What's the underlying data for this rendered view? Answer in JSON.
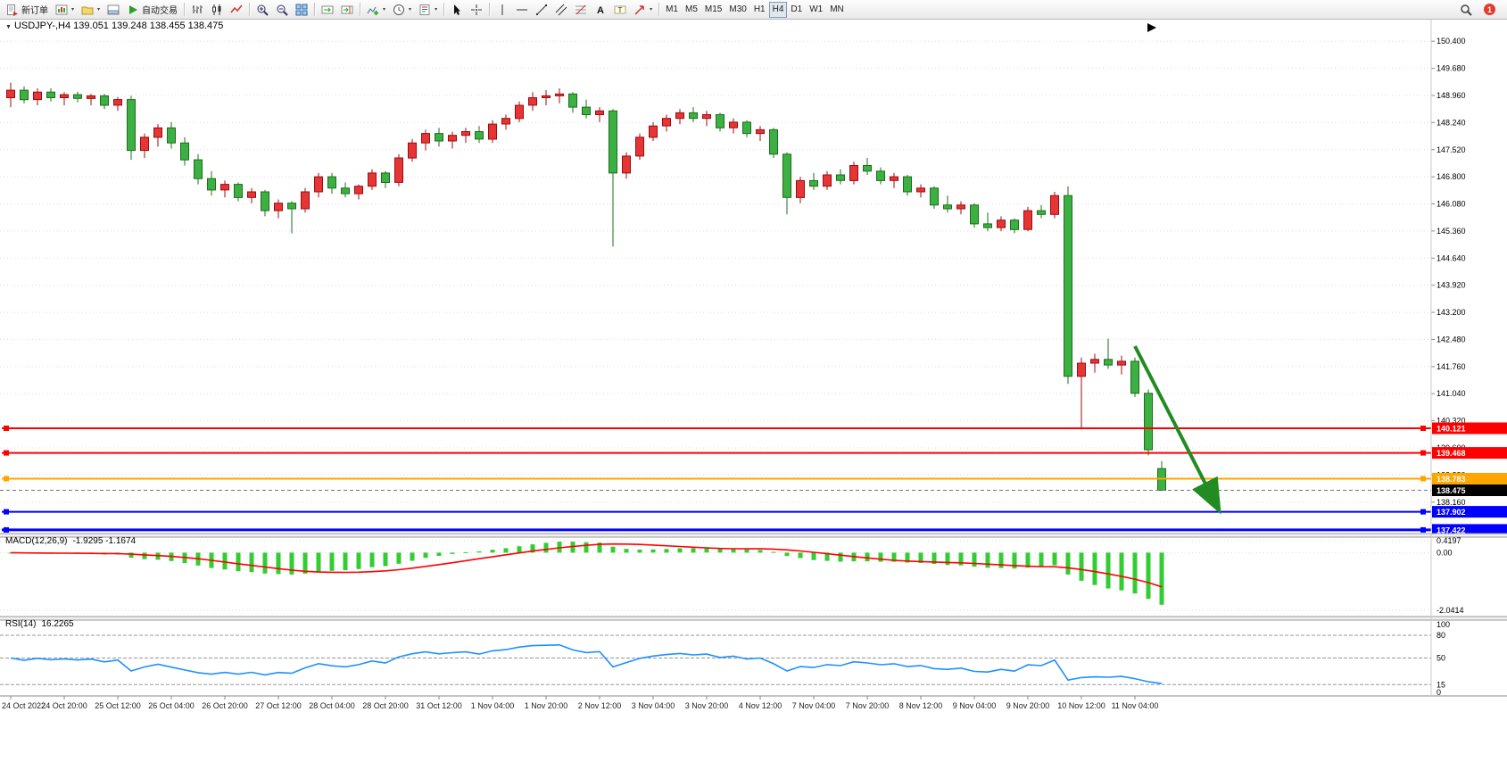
{
  "toolbar": {
    "groups": [
      {
        "items": [
          {
            "name": "new-order-button",
            "icon": "new-order-icon",
            "label": "新订单"
          },
          {
            "name": "new-chart-button",
            "icon": "new-chart-icon",
            "caret": true
          },
          {
            "name": "profiles-button",
            "icon": "profiles-icon",
            "caret": true
          },
          {
            "name": "terminal-button",
            "icon": "terminal-icon"
          },
          {
            "name": "auto-trading-button",
            "icon": "play-icon",
            "label": "自动交易"
          }
        ]
      },
      {
        "items": [
          {
            "name": "bar-chart-button",
            "icon": "ohlc-bars-icon"
          },
          {
            "name": "candlestick-chart-button",
            "icon": "candlestick-icon"
          },
          {
            "name": "line-chart-button",
            "icon": "line-chart-icon"
          }
        ]
      },
      {
        "items": [
          {
            "name": "zoom-in-button",
            "icon": "zoom-in-icon"
          },
          {
            "name": "zoom-out-button",
            "icon": "zoom-out-icon"
          },
          {
            "name": "tile-windows-button",
            "icon": "tile-windows-icon"
          }
        ]
      },
      {
        "items": [
          {
            "name": "auto-scroll-button",
            "icon": "auto-scroll-icon"
          },
          {
            "name": "chart-shift-button",
            "icon": "chart-shift-icon"
          }
        ]
      },
      {
        "items": [
          {
            "name": "indicators-button",
            "icon": "indicators-plus-icon",
            "caret": true
          },
          {
            "name": "periods-button",
            "icon": "clock-icon",
            "caret": true
          },
          {
            "name": "templates-button",
            "icon": "template-icon",
            "caret": true
          }
        ]
      },
      {
        "items": [
          {
            "name": "cursor-button",
            "icon": "cursor-icon"
          },
          {
            "name": "crosshair-button",
            "icon": "crosshair-icon"
          }
        ]
      },
      {
        "items": [
          {
            "name": "vertical-line-button",
            "icon": "vertical-line-icon"
          },
          {
            "name": "horizontal-line-button",
            "icon": "horizontal-line-icon"
          },
          {
            "name": "trendline-button",
            "icon": "trendline-icon"
          },
          {
            "name": "channel-button",
            "icon": "channel-icon"
          },
          {
            "name": "fibonacci-button",
            "icon": "fibonacci-icon"
          },
          {
            "name": "text-button",
            "icon": "text-icon"
          },
          {
            "name": "text-label-button",
            "icon": "text-label-icon"
          },
          {
            "name": "arrows-button",
            "icon": "arrow-tools-icon",
            "caret": true
          }
        ]
      },
      {
        "items": [
          {
            "name": "timeframe-m1-button",
            "label": "M1"
          },
          {
            "name": "timeframe-m5-button",
            "label": "M5"
          },
          {
            "name": "timeframe-m15-button",
            "label": "M15"
          },
          {
            "name": "timeframe-m30-button",
            "label": "M30"
          },
          {
            "name": "timeframe-h1-button",
            "label": "H1"
          },
          {
            "name": "timeframe-h4-button",
            "label": "H4",
            "active": true
          },
          {
            "name": "timeframe-d1-button",
            "label": "D1"
          },
          {
            "name": "timeframe-w1-button",
            "label": "W1"
          },
          {
            "name": "timeframe-mn-button",
            "label": "MN"
          }
        ]
      }
    ],
    "right_items": [
      {
        "name": "search-button",
        "icon": "search-icon"
      },
      {
        "name": "alerts-button",
        "icon": "alert-icon",
        "badge": "1"
      }
    ]
  },
  "chart": {
    "symbol": "USDJPY-",
    "timeframe": "H4",
    "title": "USDJPY-,H4 139.051 139.248 138.455 138.475",
    "ohlc": {
      "open": "139.051",
      "high": "139.248",
      "low": "138.455",
      "close": "138.475"
    }
  },
  "chart_data": {
    "type": "candlestick",
    "title": "USDJPY- H4",
    "price_axis": {
      "max": 150.95,
      "min": 137.325,
      "gridlines": [
        "150.400",
        "149.680",
        "148.960",
        "148.240",
        "147.520",
        "146.800",
        "146.080",
        "145.360",
        "144.640",
        "143.920",
        "143.200",
        "142.480",
        "141.760",
        "141.040",
        "140.320",
        "139.600",
        "138.880",
        "138.160",
        "137.440"
      ]
    },
    "candles": [
      [
        148.9,
        149.3,
        148.65,
        149.1
      ],
      [
        149.1,
        149.2,
        148.75,
        148.85
      ],
      [
        148.85,
        149.15,
        148.7,
        149.05
      ],
      [
        149.05,
        149.15,
        148.8,
        148.9
      ],
      [
        148.9,
        149.05,
        148.7,
        148.98
      ],
      [
        148.98,
        149.06,
        148.78,
        148.88
      ],
      [
        148.88,
        149.0,
        148.7,
        148.95
      ],
      [
        148.95,
        149.0,
        148.6,
        148.7
      ],
      [
        148.7,
        148.92,
        148.55,
        148.85
      ],
      [
        148.85,
        148.95,
        147.25,
        147.5
      ],
      [
        147.5,
        147.95,
        147.3,
        147.85
      ],
      [
        147.85,
        148.2,
        147.6,
        148.1
      ],
      [
        148.1,
        148.25,
        147.55,
        147.7
      ],
      [
        147.7,
        147.85,
        147.1,
        147.25
      ],
      [
        147.25,
        147.4,
        146.6,
        146.75
      ],
      [
        146.75,
        146.95,
        146.3,
        146.45
      ],
      [
        146.45,
        146.7,
        146.25,
        146.6
      ],
      [
        146.6,
        146.65,
        146.15,
        146.25
      ],
      [
        146.25,
        146.5,
        146.1,
        146.4
      ],
      [
        146.4,
        146.45,
        145.75,
        145.9
      ],
      [
        145.9,
        146.2,
        145.7,
        146.1
      ],
      [
        146.1,
        146.15,
        145.3,
        145.95
      ],
      [
        145.95,
        146.5,
        145.85,
        146.4
      ],
      [
        146.4,
        146.9,
        146.25,
        146.8
      ],
      [
        146.8,
        146.9,
        146.35,
        146.5
      ],
      [
        146.5,
        146.65,
        146.25,
        146.35
      ],
      [
        146.35,
        146.6,
        146.2,
        146.55
      ],
      [
        146.55,
        147.0,
        146.45,
        146.9
      ],
      [
        146.9,
        146.95,
        146.5,
        146.65
      ],
      [
        146.65,
        147.4,
        146.55,
        147.3
      ],
      [
        147.3,
        147.8,
        147.2,
        147.7
      ],
      [
        147.7,
        148.05,
        147.5,
        147.95
      ],
      [
        147.95,
        148.1,
        147.6,
        147.75
      ],
      [
        147.75,
        148.0,
        147.55,
        147.9
      ],
      [
        147.9,
        148.1,
        147.7,
        148.0
      ],
      [
        148.0,
        148.15,
        147.7,
        147.8
      ],
      [
        147.8,
        148.3,
        147.7,
        148.2
      ],
      [
        148.2,
        148.45,
        148.05,
        148.35
      ],
      [
        148.35,
        148.8,
        148.25,
        148.7
      ],
      [
        148.7,
        149.05,
        148.55,
        148.9
      ],
      [
        148.9,
        149.1,
        148.7,
        148.95
      ],
      [
        148.95,
        149.15,
        148.75,
        149.0
      ],
      [
        149.0,
        149.05,
        148.5,
        148.65
      ],
      [
        148.65,
        148.85,
        148.35,
        148.45
      ],
      [
        148.45,
        148.65,
        148.25,
        148.55
      ],
      [
        148.55,
        148.6,
        144.95,
        146.9
      ],
      [
        146.9,
        147.45,
        146.75,
        147.35
      ],
      [
        147.35,
        147.95,
        147.25,
        147.85
      ],
      [
        147.85,
        148.25,
        147.75,
        148.15
      ],
      [
        148.15,
        148.45,
        148.0,
        148.35
      ],
      [
        148.35,
        148.6,
        148.2,
        148.5
      ],
      [
        148.5,
        148.65,
        148.25,
        148.35
      ],
      [
        148.35,
        148.55,
        148.15,
        148.45
      ],
      [
        148.45,
        148.5,
        148.0,
        148.1
      ],
      [
        148.1,
        148.35,
        147.95,
        148.25
      ],
      [
        148.25,
        148.3,
        147.85,
        147.95
      ],
      [
        147.95,
        148.15,
        147.75,
        148.05
      ],
      [
        148.05,
        148.1,
        147.3,
        147.4
      ],
      [
        147.4,
        147.45,
        145.8,
        146.25
      ],
      [
        146.25,
        146.8,
        146.1,
        146.7
      ],
      [
        146.7,
        146.9,
        146.45,
        146.55
      ],
      [
        146.55,
        146.95,
        146.45,
        146.85
      ],
      [
        146.85,
        147.0,
        146.6,
        146.7
      ],
      [
        146.7,
        147.2,
        146.6,
        147.1
      ],
      [
        147.1,
        147.3,
        146.85,
        146.95
      ],
      [
        146.95,
        147.05,
        146.6,
        146.7
      ],
      [
        146.7,
        146.9,
        146.5,
        146.8
      ],
      [
        146.8,
        146.85,
        146.3,
        146.4
      ],
      [
        146.4,
        146.6,
        146.25,
        146.5
      ],
      [
        146.5,
        146.55,
        145.95,
        146.05
      ],
      [
        146.05,
        146.3,
        145.85,
        145.95
      ],
      [
        145.95,
        146.15,
        145.8,
        146.05
      ],
      [
        146.05,
        146.1,
        145.45,
        145.55
      ],
      [
        145.55,
        145.85,
        145.35,
        145.45
      ],
      [
        145.45,
        145.75,
        145.35,
        145.65
      ],
      [
        145.65,
        145.7,
        145.3,
        145.4
      ],
      [
        145.4,
        146.0,
        145.35,
        145.9
      ],
      [
        145.9,
        146.05,
        145.7,
        145.8
      ],
      [
        145.8,
        146.4,
        145.7,
        146.3
      ],
      [
        146.3,
        146.55,
        141.3,
        141.5
      ],
      [
        141.5,
        142.0,
        140.1,
        141.85
      ],
      [
        141.85,
        142.1,
        141.6,
        141.95
      ],
      [
        141.95,
        142.5,
        141.7,
        141.8
      ],
      [
        141.8,
        142.05,
        141.55,
        141.9
      ],
      [
        141.9,
        142.0,
        140.95,
        141.05
      ],
      [
        141.05,
        141.15,
        139.4,
        139.55
      ],
      [
        139.051,
        139.248,
        138.455,
        138.475
      ]
    ],
    "time_labels": [
      "24 Oct 2022",
      "24 Oct 20:00",
      "25 Oct 12:00",
      "26 Oct 04:00",
      "26 Oct 20:00",
      "27 Oct 12:00",
      "28 Oct 04:00",
      "28 Oct 20:00",
      "31 Oct 12:00",
      "1 Nov 04:00",
      "1 Nov 20:00",
      "2 Nov 12:00",
      "3 Nov 04:00",
      "3 Nov 20:00",
      "4 Nov 12:00",
      "7 Nov 04:00",
      "7 Nov 20:00",
      "8 Nov 12:00",
      "9 Nov 04:00",
      "9 Nov 20:00",
      "10 Nov 12:00",
      "11 Nov 04:00"
    ],
    "time_label_step": 4,
    "hlines": [
      {
        "price": 140.121,
        "label": "140.121",
        "color": "#FF0000",
        "width": 2
      },
      {
        "price": 139.468,
        "label": "139.468",
        "color": "#FF0000",
        "width": 2
      },
      {
        "price": 138.783,
        "label": "138.783",
        "color": "#FFA500",
        "width": 2
      },
      {
        "price": 137.902,
        "label": "137.902",
        "color": "#0000FF",
        "width": 2
      },
      {
        "price": 137.422,
        "label": "137.422",
        "color": "#0000FF",
        "width": 3
      }
    ],
    "current_price": {
      "price": 138.475,
      "label": "138.475"
    },
    "arrow": {
      "i1": 84,
      "p1": 142.3,
      "i2": 90.2,
      "p2": 138.0
    },
    "macd": {
      "label": "MACD(12,26,9)",
      "values_text": "-1.9295 -1.1674",
      "value": -1.9295,
      "signal": -1.1674,
      "axis_labels": [
        "0.4197",
        "0.00",
        "-2.0414"
      ],
      "scale": {
        "max": 0.55,
        "min": -2.3
      }
    },
    "rsi": {
      "label": "RSI(14)",
      "value_text": "16.2265",
      "value": 16.2265,
      "levels": [
        80,
        50,
        15
      ],
      "axis_labels": [
        "100",
        "80",
        "50",
        "15",
        "0"
      ],
      "scale": {
        "max": 100,
        "min": 0
      }
    }
  },
  "colors": {
    "up": "#e53535",
    "up_border": "#9e0b0f",
    "down": "#3cb043",
    "down_border": "#1b6e1b",
    "grid": "#dcdcdc",
    "axis_text": "#000000",
    "macd_hist": "#32CD32",
    "macd_signal": "#ff0000",
    "rsi_line": "#1e90ff",
    "arrow": "#228B22"
  }
}
